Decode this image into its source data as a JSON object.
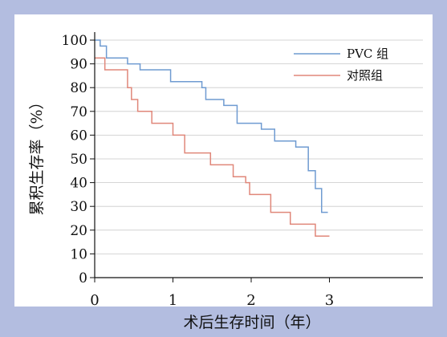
{
  "chart_data": {
    "type": "line",
    "xlabel": "术后生存时间（年）",
    "ylabel": "累积生存率（%）",
    "xlim": [
      0,
      4.1
    ],
    "ylim": [
      0,
      100
    ],
    "xticks": [
      "0",
      "1",
      "2",
      "3"
    ],
    "xtick_values": [
      0,
      1,
      2,
      3
    ],
    "yticks": [
      "0",
      "10",
      "20",
      "30",
      "40",
      "50",
      "60",
      "70",
      "80",
      "90",
      "100"
    ],
    "ytick_values": [
      0,
      10,
      20,
      30,
      40,
      50,
      60,
      70,
      80,
      90,
      100
    ],
    "grid": true,
    "legend_position": "top-right",
    "series": [
      {
        "name": "PVC 组",
        "color": "#6f9bd1",
        "step_points": [
          [
            0,
            100
          ],
          [
            0.07,
            97.5
          ],
          [
            0.15,
            92.5
          ],
          [
            0.42,
            90
          ],
          [
            0.58,
            87.5
          ],
          [
            0.97,
            82.5
          ],
          [
            1.37,
            80
          ],
          [
            1.42,
            75
          ],
          [
            1.65,
            72.5
          ],
          [
            1.82,
            65
          ],
          [
            2.13,
            62.5
          ],
          [
            2.3,
            57.5
          ],
          [
            2.57,
            55
          ],
          [
            2.73,
            45
          ],
          [
            2.82,
            37.5
          ],
          [
            2.9,
            27.5
          ],
          [
            2.98,
            27.5
          ]
        ]
      },
      {
        "name": "对照组",
        "color": "#e0877a",
        "step_points": [
          [
            0,
            92.5
          ],
          [
            0.13,
            87.5
          ],
          [
            0.42,
            80
          ],
          [
            0.47,
            75
          ],
          [
            0.55,
            70
          ],
          [
            0.73,
            65
          ],
          [
            1.0,
            60
          ],
          [
            1.15,
            52.5
          ],
          [
            1.48,
            47.5
          ],
          [
            1.77,
            42.5
          ],
          [
            1.93,
            40
          ],
          [
            1.98,
            35
          ],
          [
            2.25,
            27.5
          ],
          [
            2.5,
            22.5
          ],
          [
            2.82,
            17.5
          ],
          [
            3.0,
            17.5
          ]
        ]
      }
    ]
  }
}
